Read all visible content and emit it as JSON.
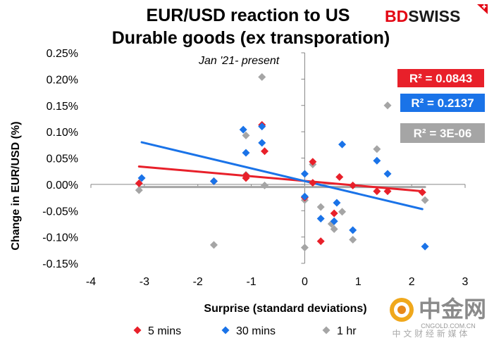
{
  "brand": {
    "name": "BDSWISS",
    "part1": "BD",
    "part2": "SWISS",
    "color1": "#e30613",
    "color2": "#1a1a1a",
    "icon": "plus-flag-icon"
  },
  "watermark": {
    "text": "中金网",
    "domain": "CNGOLD.COM.CN",
    "tagline": "中 文 财 经 新 媒 体",
    "icon": "gold-coin-icon"
  },
  "chart_data": {
    "type": "scatter",
    "title_line1": "EUR/USD reaction to US",
    "title_line2": "Durable goods (ex transporation)",
    "subtitle": "Jan '21- present",
    "xlabel": "Surprise (standard deviations)",
    "ylabel": "Change in EUR/USD  (%)",
    "xlim": [
      -4,
      3
    ],
    "ylim": [
      -0.15,
      0.25
    ],
    "xticks": [
      "-4",
      "-3",
      "-2",
      "-1",
      "0",
      "1",
      "2",
      "3"
    ],
    "yticks": [
      "-0.15%",
      "-0.10%",
      "-0.05%",
      "0.00%",
      "0.05%",
      "0.10%",
      "0.15%",
      "0.20%",
      "0.25%"
    ],
    "grid": false,
    "legend_position": "bottom",
    "series": [
      {
        "name": "5 mins",
        "color": "#e8202a",
        "marker": "diamond",
        "r2": "R² = 0.0843",
        "trendline": {
          "x": [
            -3.1,
            2.2
          ],
          "y": [
            0.034,
            -0.013
          ]
        },
        "points": [
          [
            -3.1,
            0.002
          ],
          [
            -1.7,
            0.006
          ],
          [
            -1.1,
            0.012
          ],
          [
            -1.1,
            0.017
          ],
          [
            -0.8,
            0.113
          ],
          [
            -0.75,
            0.063
          ],
          [
            0.0,
            -0.025
          ],
          [
            0.15,
            0.043
          ],
          [
            0.15,
            0.003
          ],
          [
            0.3,
            -0.108
          ],
          [
            0.55,
            -0.055
          ],
          [
            0.65,
            0.014
          ],
          [
            0.9,
            -0.002
          ],
          [
            1.35,
            -0.013
          ],
          [
            1.55,
            -0.013
          ],
          [
            2.2,
            -0.015
          ]
        ]
      },
      {
        "name": "30 mins",
        "color": "#1a73e8",
        "marker": "diamond",
        "r2": "R² = 0.2137",
        "trendline": {
          "x": [
            -3.05,
            2.2
          ],
          "y": [
            0.08,
            -0.047
          ]
        },
        "points": [
          [
            -3.05,
            0.012
          ],
          [
            -1.7,
            0.006
          ],
          [
            -1.15,
            0.104
          ],
          [
            -1.1,
            0.06
          ],
          [
            -0.8,
            0.11
          ],
          [
            -0.8,
            0.079
          ],
          [
            0.0,
            0.02
          ],
          [
            0.0,
            -0.023
          ],
          [
            0.3,
            -0.065
          ],
          [
            0.55,
            -0.07
          ],
          [
            0.6,
            -0.035
          ],
          [
            0.7,
            0.076
          ],
          [
            0.9,
            -0.087
          ],
          [
            1.35,
            0.045
          ],
          [
            1.55,
            0.02
          ],
          [
            2.25,
            -0.118
          ]
        ]
      },
      {
        "name": "1 hr",
        "color": "#a5a5a5",
        "marker": "diamond",
        "r2": "R² = 3E-06",
        "trendline": {
          "x": [
            -3.1,
            2.25
          ],
          "y": [
            -0.005,
            -0.005
          ]
        },
        "points": [
          [
            -3.1,
            -0.011
          ],
          [
            -1.7,
            -0.115
          ],
          [
            -1.1,
            0.093
          ],
          [
            -1.1,
            0.018
          ],
          [
            -0.8,
            0.204
          ],
          [
            -0.75,
            -0.002
          ],
          [
            0.0,
            -0.03
          ],
          [
            0.0,
            -0.12
          ],
          [
            0.3,
            -0.043
          ],
          [
            0.15,
            0.038
          ],
          [
            0.5,
            -0.075
          ],
          [
            0.55,
            -0.085
          ],
          [
            0.7,
            -0.052
          ],
          [
            0.9,
            -0.105
          ],
          [
            1.35,
            0.067
          ],
          [
            1.55,
            0.15
          ],
          [
            2.25,
            -0.03
          ]
        ]
      }
    ]
  }
}
